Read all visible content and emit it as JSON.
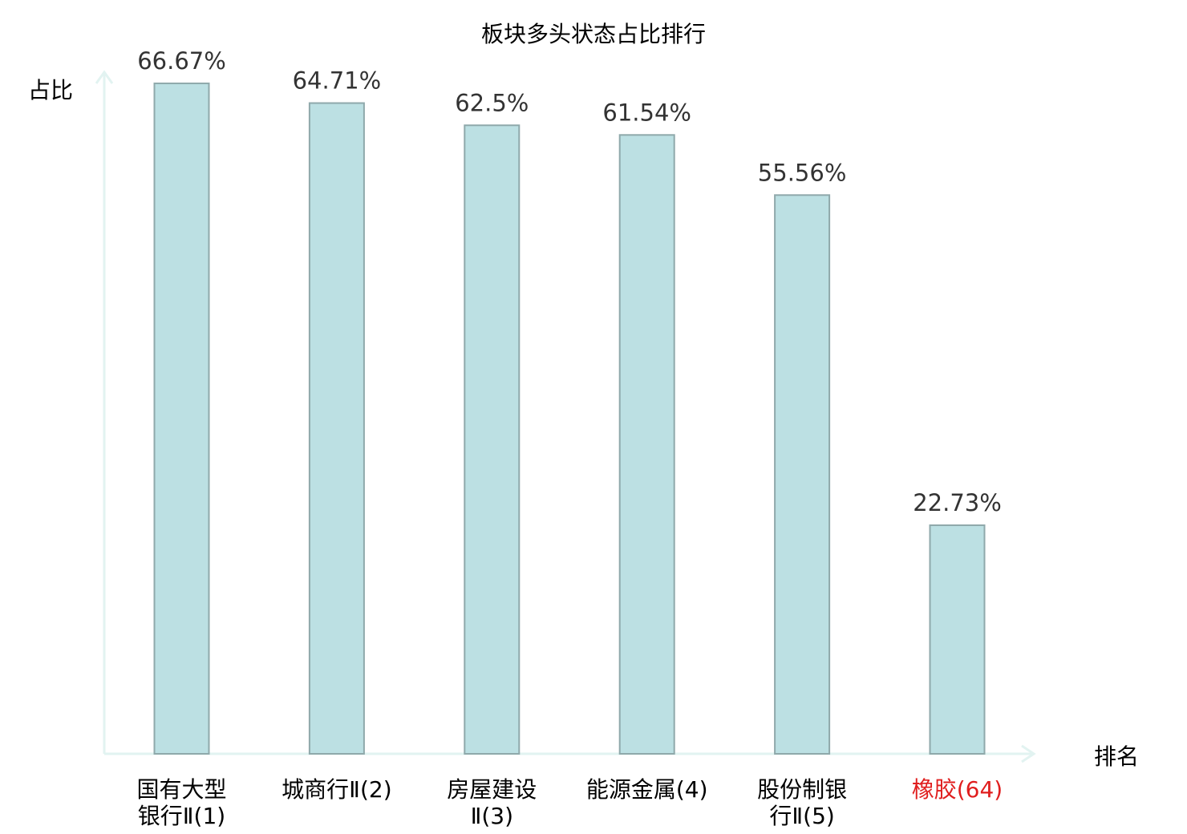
{
  "chart_data": {
    "type": "bar",
    "title": "板块多头状态占比排行",
    "xlabel": "排名",
    "ylabel": "占比",
    "categories": [
      [
        "国有大型",
        "银行Ⅱ(1)"
      ],
      [
        "城商行Ⅱ(2)"
      ],
      [
        "房屋建设",
        "Ⅱ(3)"
      ],
      [
        "能源金属(4)"
      ],
      [
        "股份制银",
        "行Ⅱ(5)"
      ],
      [
        "橡胶(64)"
      ]
    ],
    "values": [
      66.67,
      64.71,
      62.5,
      61.54,
      55.56,
      22.73
    ],
    "value_labels": [
      "66.67%",
      "64.71%",
      "62.5%",
      "61.54%",
      "55.56%",
      "22.73%"
    ],
    "highlight_index": 5,
    "ylim": [
      0,
      70
    ],
    "grid": false,
    "legend": "none",
    "colors": {
      "bar_fill": "#bce0e3",
      "bar_stroke": "#8fa9ab",
      "axis": "#e2f3f1",
      "highlight_text": "#e01e1e"
    }
  }
}
